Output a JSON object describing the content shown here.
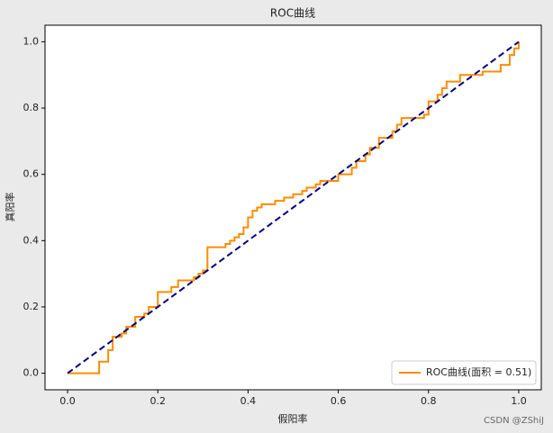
{
  "chart_data": {
    "type": "line",
    "title": "ROC曲线",
    "xlabel": "假阳率",
    "ylabel": "真阳率",
    "xlim": [
      -0.05,
      1.05
    ],
    "ylim": [
      -0.05,
      1.05
    ],
    "xticks": [
      {
        "value": 0,
        "label": "0.0"
      },
      0.2,
      0.4,
      0.6,
      0.8,
      {
        "value": 1,
        "label": "1.0"
      }
    ],
    "yticks": [
      {
        "value": 0,
        "label": "0.0"
      },
      0.2,
      0.4,
      0.6,
      0.8,
      {
        "value": 1,
        "label": "1.0"
      }
    ],
    "legend": "lower right",
    "series": [
      {
        "name": "ROC曲线(面积 = 0.51)",
        "color": "#ff8c00",
        "style": "solid",
        "x": [
          0,
          0.07,
          0.07,
          0.09,
          0.09,
          0.1,
          0.1,
          0.12,
          0.12,
          0.13,
          0.13,
          0.15,
          0.15,
          0.17,
          0.17,
          0.18,
          0.18,
          0.2,
          0.2,
          0.23,
          0.23,
          0.245,
          0.245,
          0.28,
          0.28,
          0.29,
          0.29,
          0.3,
          0.3,
          0.31,
          0.31,
          0.35,
          0.35,
          0.36,
          0.36,
          0.37,
          0.37,
          0.38,
          0.38,
          0.39,
          0.39,
          0.4,
          0.4,
          0.41,
          0.41,
          0.42,
          0.42,
          0.43,
          0.43,
          0.46,
          0.46,
          0.48,
          0.48,
          0.5,
          0.5,
          0.52,
          0.52,
          0.53,
          0.53,
          0.55,
          0.55,
          0.56,
          0.56,
          0.6,
          0.6,
          0.63,
          0.63,
          0.64,
          0.64,
          0.66,
          0.66,
          0.67,
          0.67,
          0.69,
          0.69,
          0.72,
          0.72,
          0.73,
          0.73,
          0.74,
          0.74,
          0.79,
          0.79,
          0.8,
          0.8,
          0.82,
          0.82,
          0.83,
          0.83,
          0.84,
          0.84,
          0.87,
          0.87,
          0.92,
          0.92,
          0.96,
          0.96,
          0.98,
          0.98,
          0.99,
          0.99,
          1,
          1
        ],
        "y": [
          0,
          0,
          0.035,
          0.035,
          0.07,
          0.07,
          0.11,
          0.11,
          0.12,
          0.12,
          0.14,
          0.14,
          0.17,
          0.17,
          0.18,
          0.18,
          0.2,
          0.2,
          0.245,
          0.245,
          0.26,
          0.26,
          0.28,
          0.28,
          0.29,
          0.29,
          0.3,
          0.3,
          0.31,
          0.31,
          0.38,
          0.38,
          0.39,
          0.39,
          0.4,
          0.4,
          0.41,
          0.41,
          0.42,
          0.42,
          0.44,
          0.44,
          0.47,
          0.47,
          0.49,
          0.49,
          0.5,
          0.5,
          0.51,
          0.51,
          0.52,
          0.52,
          0.53,
          0.53,
          0.54,
          0.54,
          0.55,
          0.55,
          0.56,
          0.56,
          0.57,
          0.57,
          0.58,
          0.58,
          0.6,
          0.6,
          0.62,
          0.62,
          0.64,
          0.64,
          0.66,
          0.66,
          0.68,
          0.68,
          0.71,
          0.71,
          0.73,
          0.73,
          0.75,
          0.75,
          0.77,
          0.77,
          0.78,
          0.78,
          0.82,
          0.82,
          0.84,
          0.84,
          0.86,
          0.86,
          0.88,
          0.88,
          0.9,
          0.9,
          0.91,
          0.91,
          0.93,
          0.93,
          0.96,
          0.96,
          0.98,
          0.98,
          1
        ]
      },
      {
        "color": "#000080",
        "style": "dashed",
        "x": [
          0,
          1
        ],
        "y": [
          0,
          1
        ]
      }
    ]
  },
  "watermark": "CSDN @ZShiJ"
}
